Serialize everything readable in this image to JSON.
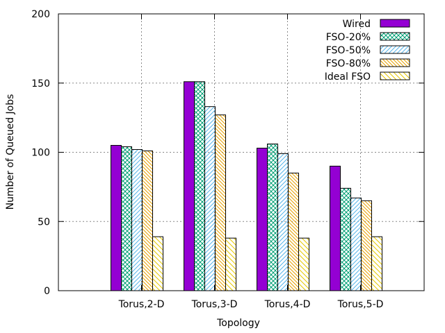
{
  "chart_data": {
    "type": "bar",
    "xlabel": "Topology",
    "ylabel": "Number of Queued Jobs",
    "ylim": [
      0,
      200
    ],
    "yticks": [
      0,
      50,
      100,
      150,
      200
    ],
    "grid": true,
    "legend_position": "top-right",
    "categories": [
      "Torus,2-D",
      "Torus,3-D",
      "Torus,4-D",
      "Torus,5-D"
    ],
    "series": [
      {
        "name": "Wired",
        "values": [
          105,
          151,
          103,
          90
        ],
        "color": "#9400d3",
        "pattern": "solid"
      },
      {
        "name": "FSO-20%",
        "values": [
          104,
          151,
          106,
          74
        ],
        "color": "#009e73",
        "pattern": "cross"
      },
      {
        "name": "FSO-50%",
        "values": [
          102,
          133,
          99,
          67
        ],
        "color": "#56b4e9",
        "pattern": "diag"
      },
      {
        "name": "FSO-80%",
        "values": [
          101,
          127,
          85,
          65
        ],
        "color": "#e69f00",
        "pattern": "diag-dense"
      },
      {
        "name": "Ideal FSO",
        "values": [
          39,
          38,
          38,
          39
        ],
        "color": "#e6c800",
        "pattern": "diag-sparse"
      }
    ]
  }
}
